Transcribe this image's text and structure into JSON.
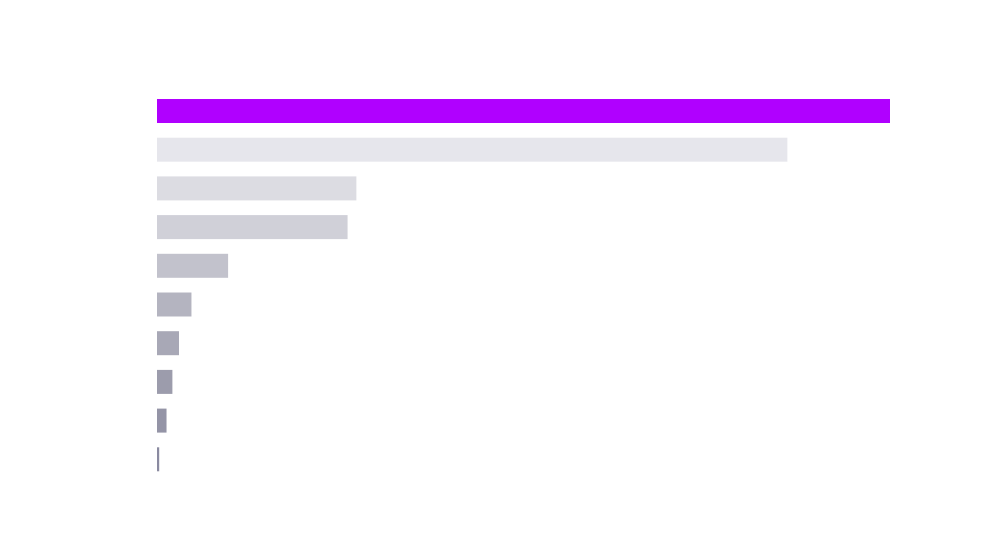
{
  "chart_data": {
    "type": "barh",
    "categories": [
      null,
      null,
      null,
      null,
      null,
      null,
      null,
      null,
      null,
      null
    ],
    "values": [
      100,
      86,
      27.2,
      26,
      9.7,
      4.7,
      3,
      2.1,
      1.3,
      0.3
    ],
    "colors": [
      "#b000ff",
      "#e6e6ec",
      "#dcdce2",
      "#d0d0d8",
      "#c2c2cc",
      "#b4b4c0",
      "#a8a8b6",
      "#9c9cac",
      "#9494a6",
      "#8a8aa0"
    ],
    "xlim": [
      0,
      100
    ]
  }
}
